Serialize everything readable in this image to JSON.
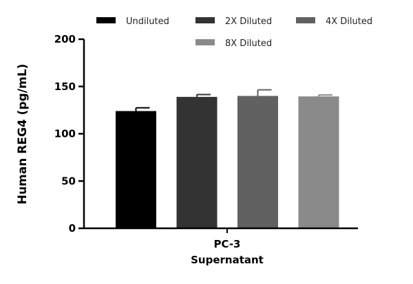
{
  "chart_data": {
    "type": "bar",
    "categories": [
      "PC-3",
      "Supernatant"
    ],
    "category_lines": [
      "PC-3",
      "Supernatant"
    ],
    "ylabel": "Human REG4 (pg/mL)",
    "ylim": [
      0,
      200
    ],
    "yticks": [
      0,
      50,
      100,
      150,
      200
    ],
    "legend_position": "top",
    "grid": false,
    "series": [
      {
        "name": "Undiluted",
        "value": 124,
        "error": 3.5,
        "color": "#000000"
      },
      {
        "name": "2X Diluted",
        "value": 139,
        "error": 2.5,
        "color": "#333333"
      },
      {
        "name": "4X Diluted",
        "value": 140,
        "error": 6.5,
        "color": "#616161"
      },
      {
        "name": "8X Diluted",
        "value": 139.5,
        "error": 1.5,
        "color": "#8a8a8a"
      }
    ]
  }
}
